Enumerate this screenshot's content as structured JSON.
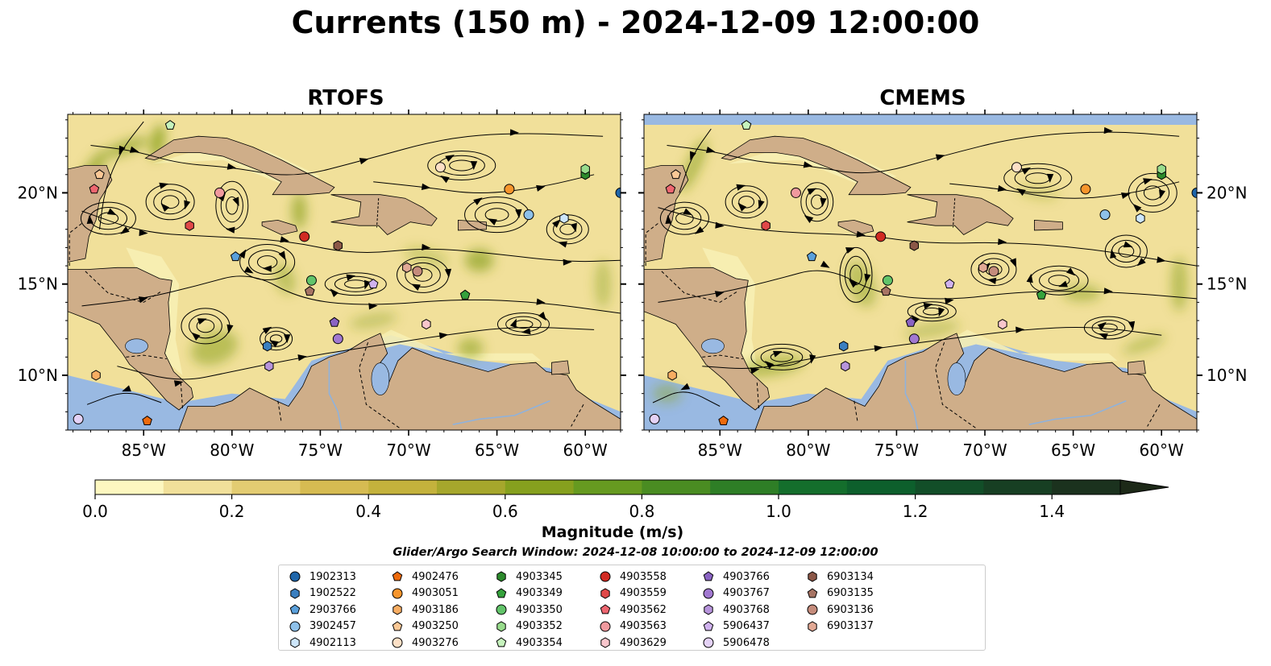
{
  "title": "Currents (150 m) - 2024-12-09 12:00:00",
  "panels": [
    {
      "title": "RTOFS"
    },
    {
      "title": "CMEMS"
    }
  ],
  "map_extent": {
    "lon_min": -89.3,
    "lon_max": -58.0,
    "lat_min": 7.0,
    "lat_max": 24.3
  },
  "lat_ticks": [
    {
      "value": 10,
      "label": "10°N"
    },
    {
      "value": 15,
      "label": "15°N"
    },
    {
      "value": 20,
      "label": "20°N"
    }
  ],
  "lon_ticks": [
    {
      "value": -85,
      "label": "85°W"
    },
    {
      "value": -80,
      "label": "80°W"
    },
    {
      "value": -75,
      "label": "75°W"
    },
    {
      "value": -70,
      "label": "70°W"
    },
    {
      "value": -65,
      "label": "65°W"
    },
    {
      "value": -60,
      "label": "60°W"
    }
  ],
  "colorbar": {
    "label": "Magnitude (m/s)",
    "min": 0.0,
    "max": 1.5,
    "extend": "max",
    "ticks": [
      {
        "value": 0.0,
        "label": "0.0"
      },
      {
        "value": 0.2,
        "label": "0.2"
      },
      {
        "value": 0.4,
        "label": "0.4"
      },
      {
        "value": 0.6,
        "label": "0.6"
      },
      {
        "value": 0.8,
        "label": "0.8"
      },
      {
        "value": 1.0,
        "label": "1.0"
      },
      {
        "value": 1.2,
        "label": "1.2"
      },
      {
        "value": 1.4,
        "label": "1.4"
      }
    ],
    "colors": [
      "#fdf7c0",
      "#f1e09a",
      "#e3cc72",
      "#d6bb52",
      "#c4b23c",
      "#a6a72c",
      "#86a01e",
      "#669a20",
      "#4a8c22",
      "#2e7e26",
      "#146e2c",
      "#0d5f2c",
      "#124e28",
      "#173f23",
      "#1b321e",
      "#1d2918"
    ]
  },
  "colors": {
    "ocean": "#99b9e2",
    "land": "#cfae89",
    "shelf": "#f7efb4",
    "border": "#000000"
  },
  "search_window": "Glider/Argo Search Window: 2024-12-08 10:00:00 to 2024-12-09 12:00:00",
  "floats": [
    {
      "id": "1902313",
      "marker": "circle",
      "color": "#1f66aa",
      "lon": -58.0,
      "lat": 20.0
    },
    {
      "id": "1902522",
      "marker": "hexagon",
      "color": "#3a7fc0",
      "lon": -78.0,
      "lat": 11.6
    },
    {
      "id": "2903766",
      "marker": "pentagon",
      "color": "#5aa0db",
      "lon": -79.8,
      "lat": 16.5
    },
    {
      "id": "3902457",
      "marker": "circle",
      "color": "#8ec1ea",
      "lon": -63.2,
      "lat": 18.8
    },
    {
      "id": "4902113",
      "marker": "hexagon",
      "color": "#cde6fb",
      "lon": -61.2,
      "lat": 18.6
    },
    {
      "id": "4902476",
      "marker": "pentagon",
      "color": "#ee6a0c",
      "lon": -84.8,
      "lat": 7.5
    },
    {
      "id": "4903051",
      "marker": "circle",
      "color": "#f7952c",
      "lon": -64.3,
      "lat": 20.2
    },
    {
      "id": "4903186",
      "marker": "hexagon",
      "color": "#f8ad62",
      "lon": -87.7,
      "lat": 10.0
    },
    {
      "id": "4903250",
      "marker": "pentagon",
      "color": "#fbc896",
      "lon": -87.5,
      "lat": 21.0
    },
    {
      "id": "4903276",
      "marker": "circle",
      "color": "#fde0c6",
      "lon": -68.2,
      "lat": 21.4
    },
    {
      "id": "4903345",
      "marker": "hexagon",
      "color": "#2c8a2c",
      "lon": -60.0,
      "lat": 21.0
    },
    {
      "id": "4903349",
      "marker": "pentagon",
      "color": "#35a23c",
      "lon": -66.8,
      "lat": 14.4
    },
    {
      "id": "4903350",
      "marker": "circle",
      "color": "#62c46a",
      "lon": -75.5,
      "lat": 15.2
    },
    {
      "id": "4903352",
      "marker": "hexagon",
      "color": "#98dc8c",
      "lon": -60.0,
      "lat": 21.3
    },
    {
      "id": "4903354",
      "marker": "pentagon",
      "color": "#c6f3bd",
      "lon": -83.5,
      "lat": 23.7
    },
    {
      "id": "4903558",
      "marker": "circle",
      "color": "#d12a22",
      "lon": -75.9,
      "lat": 17.6
    },
    {
      "id": "4903559",
      "marker": "hexagon",
      "color": "#e04848",
      "lon": -82.4,
      "lat": 18.2
    },
    {
      "id": "4903562",
      "marker": "pentagon",
      "color": "#ee6670",
      "lon": -87.8,
      "lat": 20.2
    },
    {
      "id": "4903563",
      "marker": "circle",
      "color": "#f0999e",
      "lon": -80.7,
      "lat": 20.0
    },
    {
      "id": "4903629",
      "marker": "hexagon",
      "color": "#f8c6cc",
      "lon": -69.0,
      "lat": 12.8
    },
    {
      "id": "4903766",
      "marker": "pentagon",
      "color": "#8a63c3",
      "lon": -74.2,
      "lat": 12.9
    },
    {
      "id": "4903767",
      "marker": "circle",
      "color": "#a178d0",
      "lon": -74.0,
      "lat": 12.0
    },
    {
      "id": "4903768",
      "marker": "hexagon",
      "color": "#b794dc",
      "lon": -77.9,
      "lat": 10.5
    },
    {
      "id": "5906437",
      "marker": "pentagon",
      "color": "#d0b2ef",
      "lon": -72.0,
      "lat": 15.0
    },
    {
      "id": "5906478",
      "marker": "circle",
      "color": "#e4d2f6",
      "lon": -88.7,
      "lat": 7.6
    },
    {
      "id": "6903134",
      "marker": "hexagon",
      "color": "#8b5747",
      "lon": -74.0,
      "lat": 17.1
    },
    {
      "id": "6903135",
      "marker": "pentagon",
      "color": "#a77464",
      "lon": -75.6,
      "lat": 14.6
    },
    {
      "id": "6903136",
      "marker": "circle",
      "color": "#c58c7c",
      "lon": -69.5,
      "lat": 15.7
    },
    {
      "id": "6903137",
      "marker": "hexagon",
      "color": "#e2a995",
      "lon": -70.1,
      "lat": 15.9
    }
  ]
}
